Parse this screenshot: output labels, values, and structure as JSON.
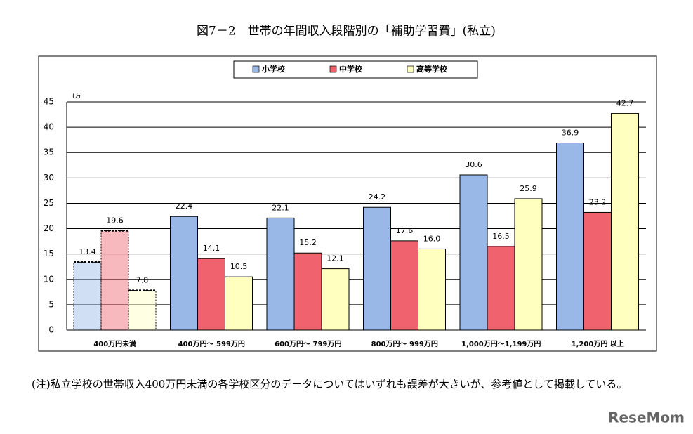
{
  "chart_data": {
    "type": "bar",
    "title": "図7－2　世帯の年間収入段階別の「補助学習費」(私立)",
    "y_unit": "(万",
    "categories": [
      "400万円未満",
      "400万円～ 599万円",
      "600万円～ 799万円",
      "800万円～ 999万円",
      "1,000万円～1,199万円",
      "1,200万円 以上"
    ],
    "series": [
      {
        "name": "小学校",
        "color": "#99b8e8",
        "values": [
          13.4,
          22.4,
          22.1,
          24.2,
          30.6,
          36.9
        ],
        "value_labels": [
          "13.4",
          "22.4",
          "22.1",
          "24.2",
          "30.6",
          "36.9"
        ]
      },
      {
        "name": "中学校",
        "color": "#f0636e",
        "values": [
          19.6,
          14.1,
          15.2,
          17.6,
          16.5,
          23.2
        ],
        "value_labels": [
          "19.6",
          "14.1",
          "15.2",
          "17.6",
          "16.5",
          "23.2"
        ]
      },
      {
        "name": "高等学校",
        "color": "#ffffc0",
        "values": [
          7.8,
          10.5,
          12.1,
          16.0,
          25.9,
          42.7
        ],
        "value_labels": [
          "7.8",
          "10.5",
          "12.1",
          "16.0",
          "25.9",
          "42.7"
        ]
      }
    ],
    "ylim": [
      0,
      45
    ],
    "yticks": [
      0,
      5,
      10,
      15,
      20,
      25,
      30,
      35,
      40,
      45
    ],
    "grid": true
  },
  "note": "(注)私立学校の世帯収入400万円未満の各学校区分のデータについてはいずれも誤差が大きいが、参考値として掲載している。",
  "watermark": "ReseMom"
}
